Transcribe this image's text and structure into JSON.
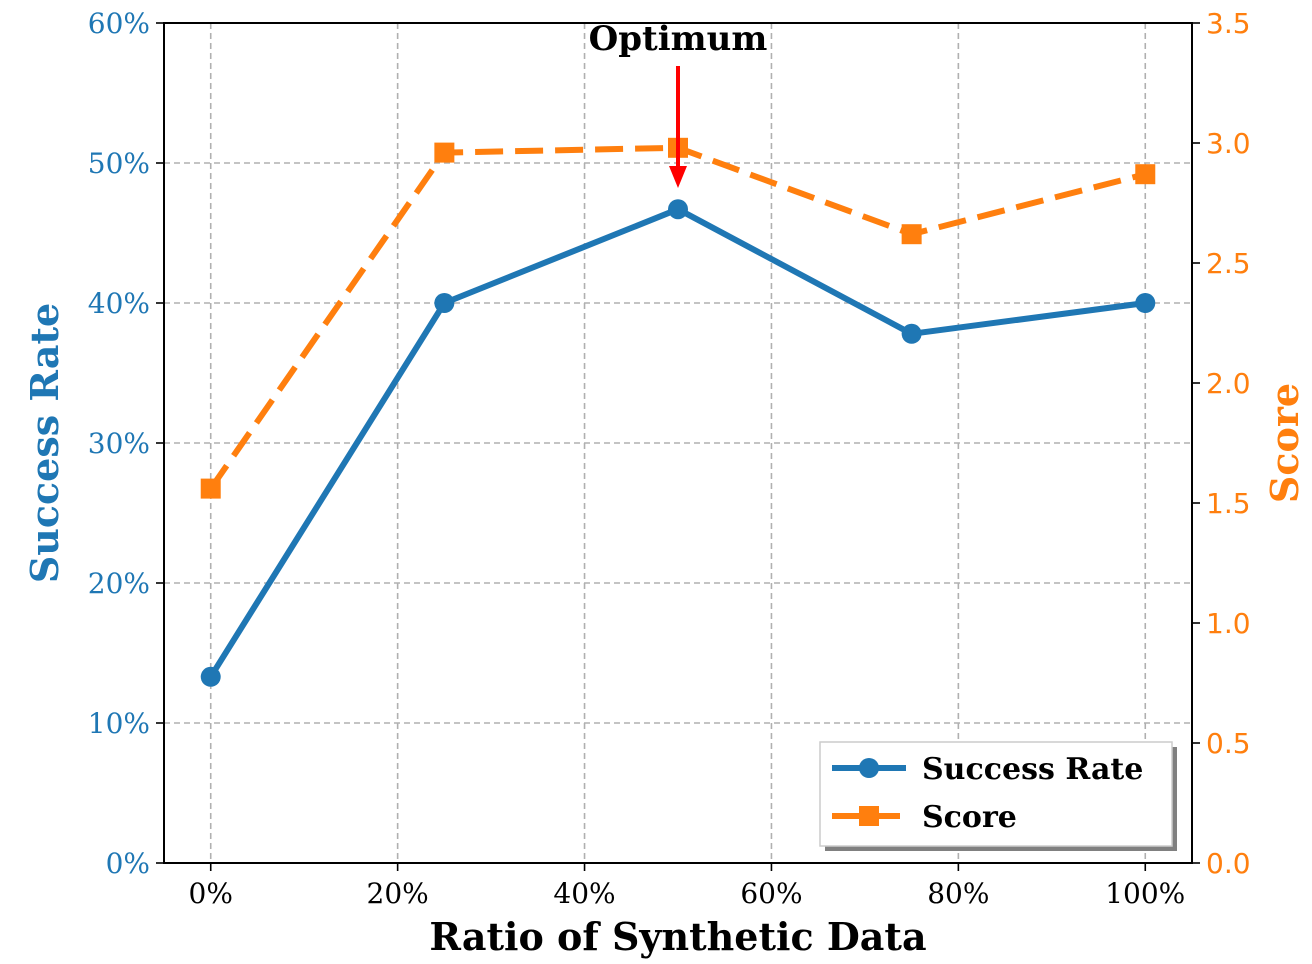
{
  "chart_data": {
    "type": "line",
    "x": [
      0,
      25,
      50,
      75,
      100
    ],
    "xlabel": "Ratio of Synthetic Data",
    "xlim": [
      -5,
      105
    ],
    "xticks": [
      0,
      20,
      40,
      60,
      80,
      100
    ],
    "xtick_labels": [
      "0%",
      "20%",
      "40%",
      "60%",
      "80%",
      "100%"
    ],
    "y_left": {
      "label": "Success Rate",
      "lim": [
        0,
        60
      ],
      "ticks": [
        0,
        10,
        20,
        30,
        40,
        50,
        60
      ],
      "tick_labels": [
        "0%",
        "10%",
        "20%",
        "30%",
        "40%",
        "50%",
        "60%"
      ],
      "color": "#1f77b4"
    },
    "y_right": {
      "label": "Score",
      "lim": [
        0,
        3.5
      ],
      "ticks": [
        0,
        0.5,
        1,
        1.5,
        2,
        2.5,
        3,
        3.5
      ],
      "tick_labels": [
        "0.0",
        "0.5",
        "1.0",
        "1.5",
        "2.0",
        "2.5",
        "3.0",
        "3.5"
      ],
      "color": "#ff7f0e"
    },
    "series": [
      {
        "name": "Success Rate",
        "axis": "left",
        "values": [
          13.3,
          40.0,
          46.7,
          37.8,
          40.0
        ],
        "color": "#1f77b4",
        "style": "solid",
        "marker": "circle"
      },
      {
        "name": "Score",
        "axis": "right",
        "values": [
          1.56,
          2.96,
          2.98,
          2.62,
          2.87
        ],
        "color": "#ff7f0e",
        "style": "dashed",
        "marker": "square"
      }
    ],
    "annotation": {
      "text": "Optimum",
      "x": 50,
      "color": "#ff0000"
    },
    "grid": true,
    "legend_position": "bottom-right"
  }
}
